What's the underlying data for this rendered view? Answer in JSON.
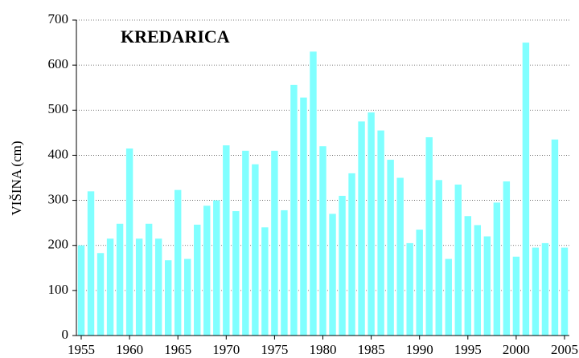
{
  "chart_data": {
    "type": "bar",
    "title": "KREDARICA",
    "y_label": "VIŠINA (cm)",
    "categories": [
      "1955",
      null,
      null,
      null,
      null,
      "1960",
      null,
      null,
      null,
      null,
      "1965",
      null,
      null,
      null,
      null,
      "1970",
      null,
      null,
      null,
      null,
      "1975",
      null,
      null,
      null,
      null,
      "1980",
      null,
      null,
      null,
      null,
      "1985",
      null,
      null,
      null,
      null,
      "1990",
      null,
      null,
      null,
      null,
      "1995",
      null,
      null,
      null,
      null,
      "2000",
      null,
      null,
      null,
      null,
      "2005"
    ],
    "values": [
      200,
      320,
      183,
      215,
      248,
      415,
      215,
      248,
      215,
      167,
      323,
      170,
      246,
      288,
      300,
      422,
      276,
      410,
      380,
      240,
      410,
      278,
      556,
      528,
      630,
      420,
      270,
      310,
      360,
      475,
      495,
      455,
      390,
      350,
      205,
      235,
      440,
      345,
      170,
      335,
      265,
      245,
      220,
      295,
      342,
      175,
      650,
      195,
      205,
      435,
      195
    ],
    "color": "#80ffff",
    "ylim": [
      0,
      700
    ],
    "yticks": [
      0,
      100,
      200,
      300,
      400,
      500,
      600,
      700
    ],
    "grid": true
  }
}
